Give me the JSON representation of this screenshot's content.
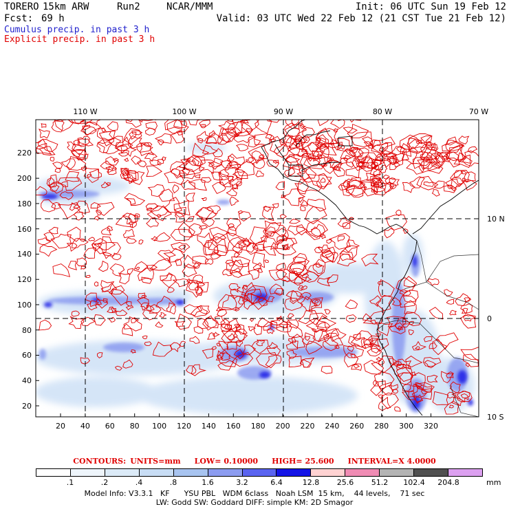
{
  "header": {
    "model_name": "TORERO",
    "resolution": "15km ARW",
    "run": "Run2",
    "center": "NCAR/MMM",
    "init": "Init: 06 UTC Sun 19 Feb 12",
    "fcst_label": "Fcst:",
    "fcst_hours": "69 h",
    "valid": "Valid: 03 UTC Wed 22 Feb 12 (21 CST Tue 21 Feb 12)"
  },
  "legend": {
    "cumulus": "Cumulus precip. in past 3 h",
    "explicit": "Explicit precip. in past 3 h",
    "cumulus_color": "#1f1fcc",
    "explicit_color": "#e00000"
  },
  "map": {
    "lon_labels": [
      "110 W",
      "100 W",
      "90 W",
      "80 W",
      "70 W"
    ],
    "lat_labels": [
      "10 N",
      "0",
      "10 S"
    ],
    "y_ticks": [
      "20",
      "40",
      "60",
      "80",
      "100",
      "120",
      "140",
      "160",
      "180",
      "200",
      "220"
    ],
    "x_ticks": [
      "20",
      "40",
      "60",
      "80",
      "100",
      "120",
      "140",
      "160",
      "180",
      "200",
      "220",
      "240",
      "260",
      "280",
      "300",
      "320"
    ]
  },
  "contours": {
    "label": "CONTOURS:",
    "units": "UNITS=mm",
    "low": "LOW= 0.10000",
    "high": "HIGH= 25.600",
    "interval": "INTERVAL=X 4.0000"
  },
  "color_scale": {
    "labels": [
      ".1",
      ".2",
      ".4",
      ".8",
      "1.6",
      "3.2",
      "6.4",
      "12.8",
      "25.6",
      "51.2",
      "102.4",
      "204.8"
    ],
    "colors": [
      "#ffffff",
      "#eef5fb",
      "#dcebf8",
      "#c8ddf5",
      "#a8c4f0",
      "#8c9cf0",
      "#5a64f0",
      "#1414e6",
      "#ffd2d2",
      "#f08cb4",
      "#b4b4b4",
      "#505050",
      "#dca0f0"
    ],
    "unit": "mm"
  },
  "model_info": {
    "line1": "Model Info: V3.3.1   KF      YSU PBL   WDM 6class   Noah LSM  15 km,    44 levels,    71 sec",
    "line2": "LW: Godd SW: Goddard DIFF: simple KM: 2D Smagor"
  }
}
